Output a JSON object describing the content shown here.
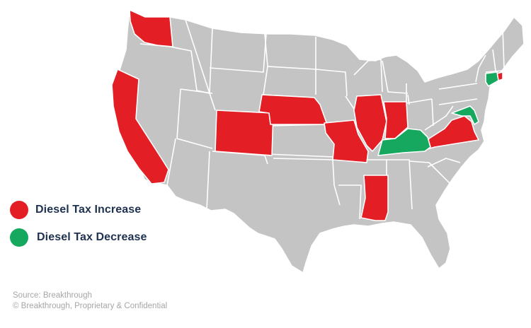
{
  "colors": {
    "increase": "#e31e24",
    "decrease": "#16a85f",
    "neutral": "#c4c4c4",
    "border": "#ffffff",
    "legend_text": "#1f3150",
    "footnote": "#a6a6a6"
  },
  "legend": {
    "increase_label": "Diesel Tax Increase",
    "decrease_label": "Diesel Tax Decrease"
  },
  "footer": {
    "source": "Source: Breakthrough",
    "copyright": "© Breakthrough, Proprietary & Confidential"
  },
  "states": {
    "increase": [
      "Washington",
      "California",
      "Colorado",
      "Nebraska",
      "Missouri",
      "Illinois",
      "Indiana",
      "Mississippi",
      "Virginia",
      "Rhode Island"
    ],
    "decrease": [
      "Kentucky",
      "Maryland",
      "Connecticut"
    ]
  }
}
